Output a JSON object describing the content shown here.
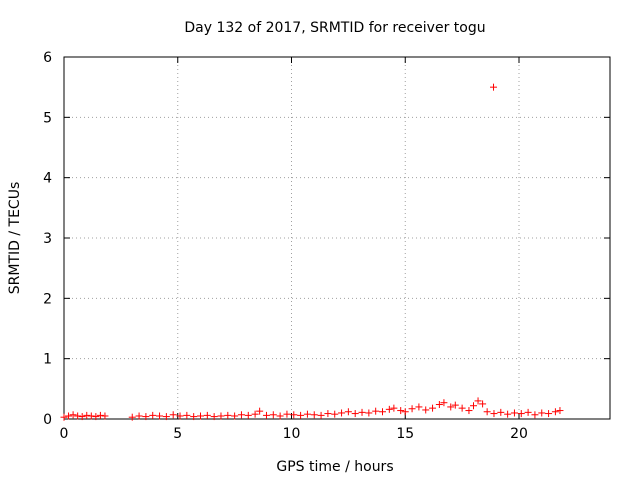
{
  "chart_data": {
    "type": "scatter",
    "title": "Day 132 of 2017, SRMTID for receiver togu",
    "xlabel": "GPS time / hours",
    "ylabel": "SRMTID / TECUs",
    "xlim": [
      0,
      24
    ],
    "ylim": [
      0,
      6
    ],
    "xticks": [
      0,
      5,
      10,
      15,
      20
    ],
    "yticks": [
      0,
      1,
      2,
      3,
      4,
      5,
      6
    ],
    "grid": true,
    "marker": "+",
    "colors": {
      "series": "#ff0000",
      "grid": "#a0a0a0",
      "axes": "#000000"
    },
    "series": [
      {
        "name": "",
        "x": [
          0.0,
          0.2,
          0.4,
          0.6,
          0.8,
          1.0,
          1.2,
          1.4,
          1.6,
          1.8,
          3.0,
          3.3,
          3.6,
          3.9,
          4.2,
          4.5,
          4.8,
          5.1,
          5.4,
          5.7,
          6.0,
          6.3,
          6.6,
          6.9,
          7.2,
          7.5,
          7.8,
          8.1,
          8.4,
          8.6,
          8.9,
          9.2,
          9.5,
          9.8,
          10.1,
          10.4,
          10.7,
          11.0,
          11.3,
          11.6,
          11.9,
          12.2,
          12.5,
          12.8,
          13.1,
          13.4,
          13.7,
          14.0,
          14.3,
          14.5,
          14.8,
          15.0,
          15.3,
          15.6,
          15.9,
          16.2,
          16.5,
          16.7,
          17.0,
          17.2,
          17.5,
          17.8,
          18.0,
          18.2,
          18.4,
          18.6,
          18.9,
          19.2,
          19.5,
          19.8,
          20.1,
          20.4,
          20.7,
          21.0,
          21.3,
          21.6,
          21.8,
          18.88
        ],
        "y": [
          0.03,
          0.05,
          0.07,
          0.05,
          0.04,
          0.06,
          0.05,
          0.04,
          0.06,
          0.05,
          0.03,
          0.05,
          0.04,
          0.06,
          0.05,
          0.04,
          0.07,
          0.05,
          0.06,
          0.04,
          0.05,
          0.06,
          0.04,
          0.05,
          0.06,
          0.05,
          0.07,
          0.06,
          0.08,
          0.13,
          0.06,
          0.07,
          0.05,
          0.08,
          0.07,
          0.06,
          0.08,
          0.07,
          0.06,
          0.09,
          0.08,
          0.1,
          0.12,
          0.09,
          0.11,
          0.1,
          0.13,
          0.12,
          0.16,
          0.18,
          0.14,
          0.12,
          0.17,
          0.2,
          0.15,
          0.18,
          0.24,
          0.27,
          0.2,
          0.23,
          0.18,
          0.14,
          0.22,
          0.3,
          0.25,
          0.12,
          0.09,
          0.11,
          0.08,
          0.1,
          0.09,
          0.11,
          0.07,
          0.1,
          0.09,
          0.12,
          0.14,
          5.5
        ]
      }
    ]
  }
}
